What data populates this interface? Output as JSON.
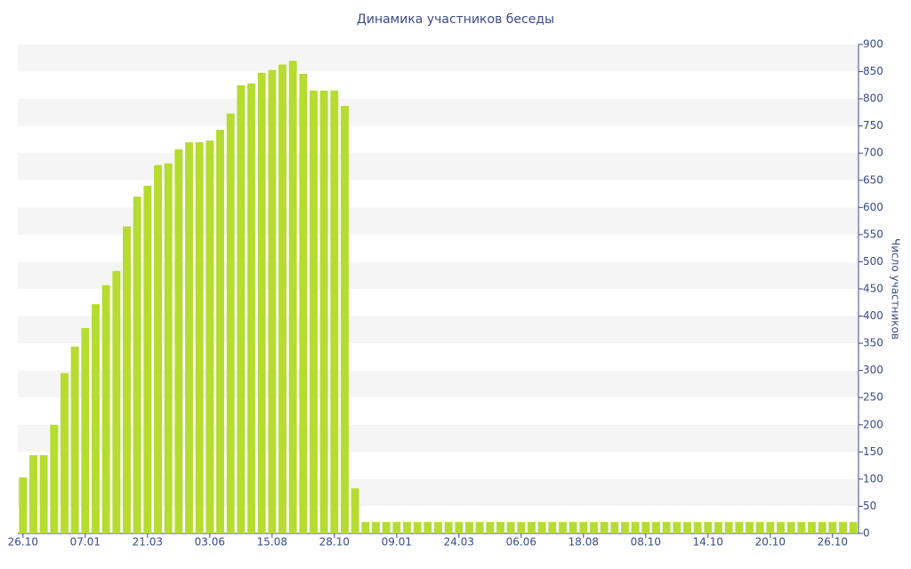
{
  "chart_data": {
    "type": "bar",
    "title": "Динамика участников беседы",
    "y_label": "Число участников",
    "categories": [
      "26.10",
      null,
      null,
      null,
      null,
      null,
      "07.01",
      null,
      null,
      null,
      null,
      null,
      "21.03",
      null,
      null,
      null,
      null,
      null,
      "03.06",
      null,
      null,
      null,
      null,
      null,
      "15.08",
      null,
      null,
      null,
      null,
      null,
      "28.10",
      null,
      null,
      null,
      null,
      null,
      "09.01",
      null,
      null,
      null,
      null,
      null,
      "24.03",
      null,
      null,
      null,
      null,
      null,
      "06.06",
      null,
      null,
      null,
      null,
      null,
      "18.08",
      null,
      null,
      null,
      null,
      null,
      "08.10",
      null,
      null,
      null,
      null,
      null,
      "14.10",
      null,
      null,
      null,
      null,
      null,
      "20.10",
      null,
      null,
      null,
      null,
      null,
      "26.10",
      null,
      null
    ],
    "values": [
      103,
      144,
      144,
      200,
      295,
      344,
      378,
      422,
      457,
      483,
      565,
      620,
      640,
      678,
      681,
      707,
      720,
      720,
      723,
      743,
      773,
      825,
      828,
      848,
      853,
      863,
      870,
      846,
      815,
      815,
      815,
      787,
      83,
      21,
      21,
      21,
      21,
      21,
      21,
      21,
      21,
      21,
      21,
      21,
      21,
      21,
      21,
      21,
      21,
      21,
      21,
      21,
      21,
      21,
      21,
      21,
      21,
      21,
      21,
      21,
      21,
      21,
      21,
      21,
      21,
      21,
      21,
      21,
      21,
      21,
      21,
      21,
      21,
      21,
      21,
      21,
      21,
      21,
      21,
      21,
      21
    ],
    "color": "#b5dc2f",
    "ylim": [
      0,
      900
    ],
    "yticks": [
      0,
      50,
      100,
      150,
      200,
      250,
      300,
      350,
      400,
      450,
      500,
      550,
      600,
      650,
      700,
      750,
      800,
      850,
      900
    ],
    "grid": "stripes",
    "y_axis_side": "right"
  }
}
